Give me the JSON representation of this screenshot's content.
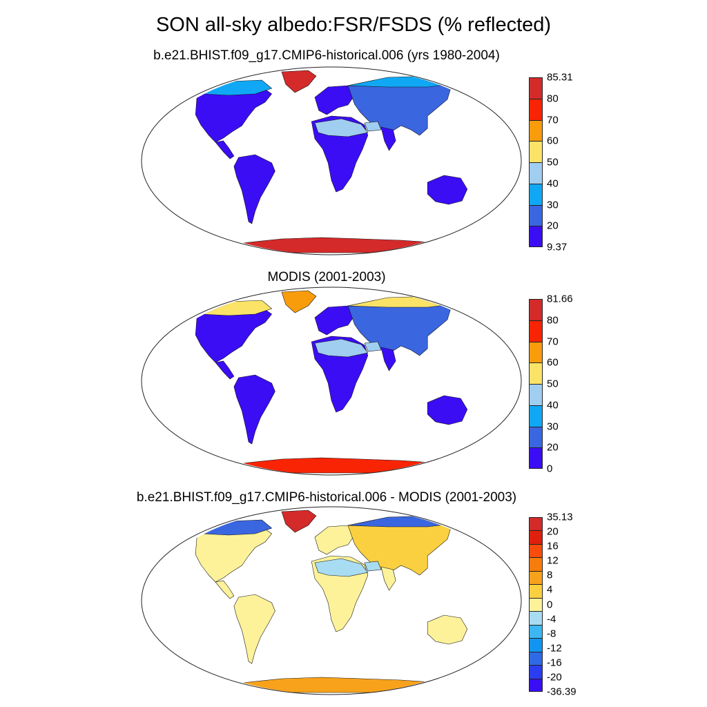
{
  "title": "SON all-sky albedo:FSR/FSDS (% reflected)",
  "panels": [
    {
      "subtitle": "b.e21.BHIST.f09_g17.CMIP6-historical.006 (yrs 1980-2004)",
      "colorbar": {
        "colors": [
          "#3b0df5",
          "#3a66e0",
          "#10a8f5",
          "#9fcef0",
          "#fbe368",
          "#f89c0c",
          "#f82404",
          "#d42a2a"
        ],
        "labels": [
          "9.37",
          "20",
          "30",
          "40",
          "50",
          "60",
          "70",
          "80",
          "85.31"
        ]
      }
    },
    {
      "subtitle": "MODIS (2001-2003)",
      "colorbar": {
        "colors": [
          "#3b0df5",
          "#3a66e0",
          "#10a8f5",
          "#9fcef0",
          "#fbe368",
          "#f89c0c",
          "#f82404",
          "#d42a2a"
        ],
        "labels": [
          "0",
          "20",
          "30",
          "40",
          "50",
          "60",
          "70",
          "80",
          "81.66"
        ]
      }
    },
    {
      "subtitle": "b.e21.BHIST.f09_g17.CMIP6-historical.006 - MODIS (2001-2003)",
      "colorbar": {
        "colors": [
          "#3b0df5",
          "#2a3df0",
          "#2f6ae6",
          "#1195f0",
          "#3cb7f2",
          "#a8dcf2",
          "#fdf29a",
          "#fbd040",
          "#f8a21c",
          "#f67c0c",
          "#f74c0c",
          "#e0200c",
          "#d42a2a"
        ],
        "labels": [
          "-36.39",
          "-20",
          "-16",
          "-12",
          "-8",
          "-4",
          "0",
          "4",
          "8",
          "12",
          "16",
          "20",
          "35.13"
        ]
      }
    }
  ],
  "map_fills": {
    "land": [
      "#3b0df5",
      "#3b0df5",
      "#fdf29a"
    ],
    "desert": [
      "#9fcef0",
      "#9fcef0",
      "#a8dcf2"
    ],
    "asia": [
      "#3a66e0",
      "#3a66e0",
      "#fbd040"
    ],
    "arctic": [
      "#10a8f5",
      "#fbe368",
      "#3a66e0"
    ],
    "greenland": [
      "#d42a2a",
      "#f89c0c",
      "#d42a2a"
    ],
    "antarctica": [
      "#d42a2a",
      "#f82404",
      "#f8a21c"
    ]
  }
}
